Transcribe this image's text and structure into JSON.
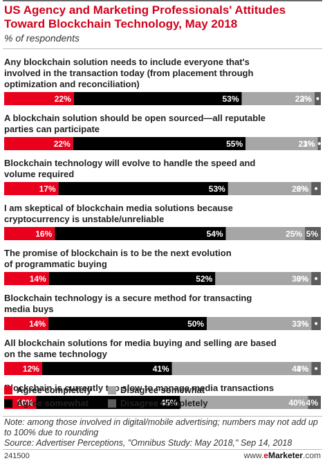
{
  "header": {
    "title": "US Agency and Marketing Professionals' Attitudes Toward Blockchain Technology, May 2018",
    "subtitle": "% of respondents"
  },
  "colors": {
    "agree_completely": "#e8001c",
    "agree_somewhat": "#000000",
    "disagree_somewhat": "#a6a6a6",
    "disagree_completely": "#5c5c5c",
    "title": "#d0021b"
  },
  "legend": {
    "agree_completely": "Agree completely",
    "agree_somewhat": "Agree somewhat",
    "disagree_somewhat": "Disagree somewhat",
    "disagree_completely": "Disagree completely"
  },
  "chart_data": {
    "type": "bar",
    "orientation": "horizontal",
    "stacked": true,
    "categories": [
      [
        "Any blockchain solution needs to include everyone that's",
        "involved in the transaction today (from placement through",
        "optimization and reconciliation)"
      ],
      [
        "A blockchain solution should be open sourced—all reputable",
        "parties can participate"
      ],
      [
        "Blockchain technology will evolve to handle the speed and",
        "volume required"
      ],
      [
        "I am skeptical of blockchain media solutions because",
        "cryptocurrency is unstable/unreliable"
      ],
      [
        "The promise of blockchain is to be the next evolution",
        "of programmatic buying"
      ],
      [
        "Blockchain technology is a secure method for transacting",
        "media buys"
      ],
      [
        "All blockchain solutions for media buying and selling are based",
        "on the same technology"
      ],
      [
        "Blockchain is currently too slow to manage media transactions"
      ]
    ],
    "series": [
      {
        "name": "Agree completely",
        "values": [
          22,
          22,
          17,
          16,
          14,
          14,
          12,
          10
        ]
      },
      {
        "name": "Agree somewhat",
        "values": [
          53,
          55,
          53,
          54,
          52,
          50,
          41,
          45
        ]
      },
      {
        "name": "Disagree somewhat",
        "values": [
          23,
          23,
          26,
          25,
          30,
          33,
          44,
          40
        ]
      },
      {
        "name": "Disagree completely",
        "values": [
          2,
          1,
          3,
          5,
          3,
          3,
          3,
          4
        ]
      }
    ],
    "unit": "%",
    "xlim": [
      0,
      100
    ],
    "legend_position": "bottom",
    "grid": false
  },
  "notes": {
    "note": "Note: among those involved in digital/mobile advertising; numbers may not add up to 100% due to rounding",
    "source": "Source: Advertiser Perceptions, \"Omnibus Study: May 2018,\" Sep 14, 2018"
  },
  "footer": {
    "chart_id": "241500",
    "brand_prefix": "www.",
    "brand_name": "eMarketer",
    "brand_suffix": ".com"
  }
}
